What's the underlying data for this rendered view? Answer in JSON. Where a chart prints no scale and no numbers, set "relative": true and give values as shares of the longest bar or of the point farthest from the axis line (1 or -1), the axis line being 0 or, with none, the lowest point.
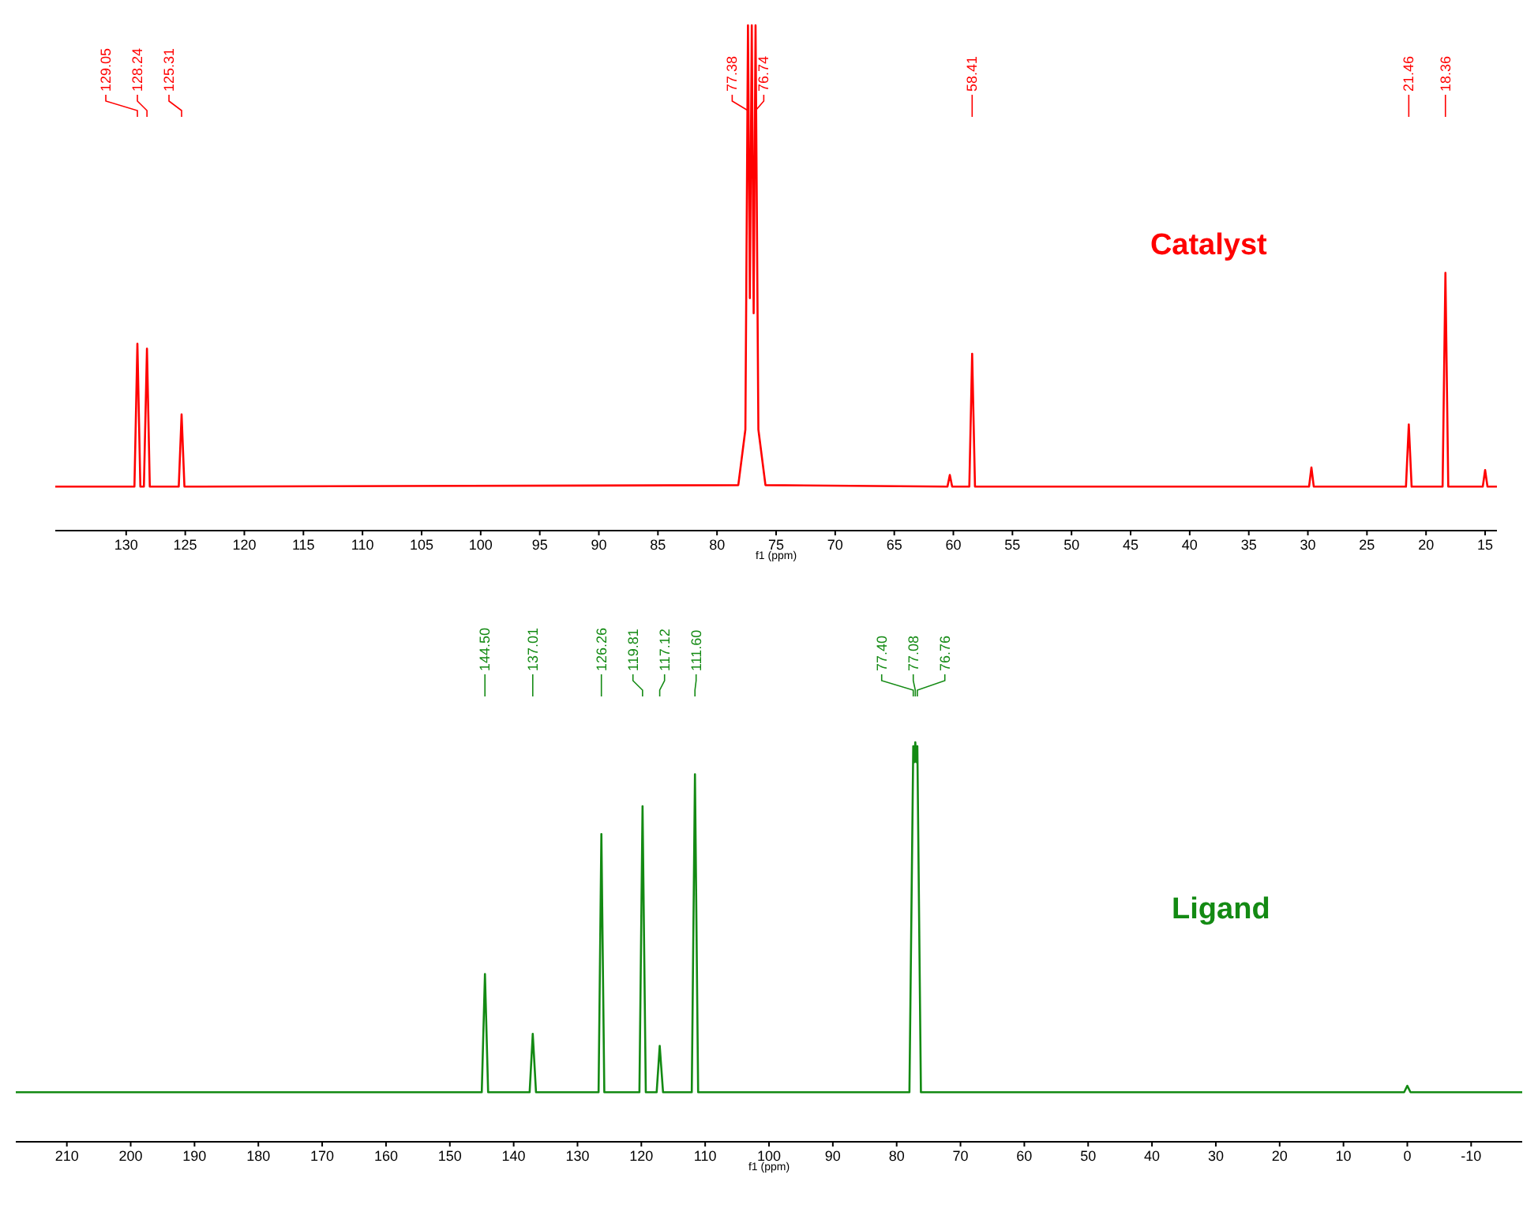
{
  "chart_data": [
    {
      "type": "line",
      "title": "Catalyst",
      "xlabel": "f1 (ppm)",
      "relative": true,
      "xlim": [
        136,
        14
      ],
      "xticks": [
        130,
        125,
        120,
        115,
        110,
        105,
        100,
        95,
        90,
        85,
        80,
        75,
        70,
        65,
        60,
        55,
        50,
        45,
        40,
        35,
        30,
        25,
        20,
        15
      ],
      "series": [
        {
          "color": "#ff0000",
          "x": [
            136,
            129.3,
            129.05,
            128.8,
            128.5,
            128.24,
            128.0,
            125.55,
            125.31,
            125.07,
            78.2,
            77.6,
            77.38,
            77.22,
            77.06,
            76.9,
            76.74,
            76.5,
            75.9,
            60.5,
            60.3,
            60.1,
            58.65,
            58.41,
            58.17,
            29.9,
            29.7,
            29.5,
            21.7,
            21.46,
            21.22,
            18.6,
            18.36,
            18.12,
            15.2,
            15.0,
            14.8,
            14
          ],
          "values": [
            0.087,
            0.087,
            0.37,
            0.087,
            0.087,
            0.36,
            0.087,
            0.087,
            0.23,
            0.087,
            0.09,
            0.2,
            1,
            0.46,
            1,
            0.43,
            1,
            0.2,
            0.09,
            0.087,
            0.11,
            0.087,
            0.087,
            0.35,
            0.087,
            0.087,
            0.125,
            0.087,
            0.087,
            0.21,
            0.087,
            0.087,
            0.51,
            0.087,
            0.087,
            0.12,
            0.087,
            0.087
          ]
        }
      ],
      "annotations": [
        {
          "text": "129.05",
          "x": 129.05
        },
        {
          "text": "128.24",
          "x": 128.24
        },
        {
          "text": "125.31",
          "x": 125.31
        },
        {
          "text": "77.38",
          "x": 77.38
        },
        {
          "text": "76.74",
          "x": 76.74
        },
        {
          "text": "58.41",
          "x": 58.41
        },
        {
          "text": "21.46",
          "x": 21.46
        },
        {
          "text": "18.36",
          "x": 18.36
        }
      ]
    },
    {
      "type": "line",
      "title": "Ligand",
      "xlabel": "f1 (ppm)",
      "relative": true,
      "xlim": [
        218,
        -18
      ],
      "xticks": [
        210,
        200,
        190,
        180,
        170,
        160,
        150,
        140,
        130,
        120,
        110,
        100,
        90,
        80,
        70,
        60,
        50,
        40,
        30,
        20,
        10,
        0,
        -10
      ],
      "series": [
        {
          "color": "#138a13",
          "x": [
            218,
            145,
            144.5,
            144.0,
            137.5,
            137.01,
            136.5,
            126.7,
            126.26,
            125.8,
            120.3,
            119.81,
            119.3,
            117.6,
            117.12,
            116.6,
            112.1,
            111.6,
            111.1,
            78.0,
            77.4,
            77.24,
            77.08,
            76.92,
            76.76,
            76.2,
            0.5,
            0,
            -0.5,
            -18
          ],
          "values": [
            0.124,
            0.124,
            0.42,
            0.124,
            0.124,
            0.27,
            0.124,
            0.124,
            0.77,
            0.124,
            0.124,
            0.84,
            0.124,
            0.124,
            0.24,
            0.124,
            0.124,
            0.92,
            0.124,
            0.124,
            0.99,
            0.95,
            1,
            0.95,
            0.99,
            0.124,
            0.124,
            0.14,
            0.124,
            0.124
          ]
        }
      ],
      "annotations": [
        {
          "text": "144.50",
          "x": 144.5
        },
        {
          "text": "137.01",
          "x": 137.01
        },
        {
          "text": "126.26",
          "x": 126.26
        },
        {
          "text": "119.81",
          "x": 119.81
        },
        {
          "text": "117.12",
          "x": 117.12
        },
        {
          "text": "111.60",
          "x": 111.6
        },
        {
          "text": "77.40",
          "x": 77.4
        },
        {
          "text": "77.08",
          "x": 77.08
        },
        {
          "text": "76.76",
          "x": 76.76
        }
      ]
    }
  ]
}
